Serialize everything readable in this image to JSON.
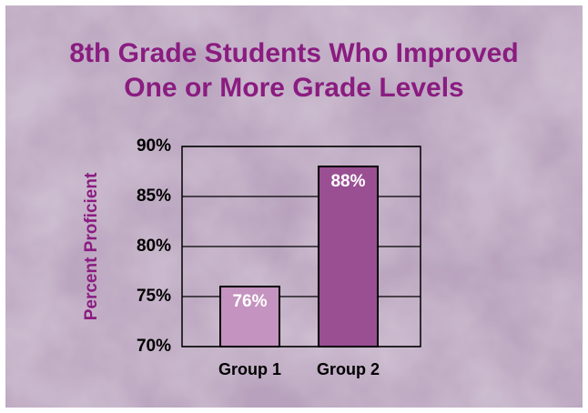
{
  "chart_data": {
    "type": "bar",
    "title": [
      "8th Grade Students Who Improved",
      "One or More Grade Levels"
    ],
    "y_label": "Percent Proficient",
    "categories": [
      "Group 1",
      "Group 2"
    ],
    "values": [
      76,
      88
    ],
    "value_labels": [
      "76%",
      "88%"
    ],
    "colors": [
      "#c493bf",
      "#9a4f93"
    ],
    "ylim": [
      70,
      90
    ],
    "yticks": [
      {
        "value": 70,
        "label": "70%"
      },
      {
        "value": 75,
        "label": "75%"
      },
      {
        "value": 80,
        "label": "80%"
      },
      {
        "value": 85,
        "label": "85%"
      },
      {
        "value": 90,
        "label": "90%"
      }
    ],
    "grid": true
  }
}
